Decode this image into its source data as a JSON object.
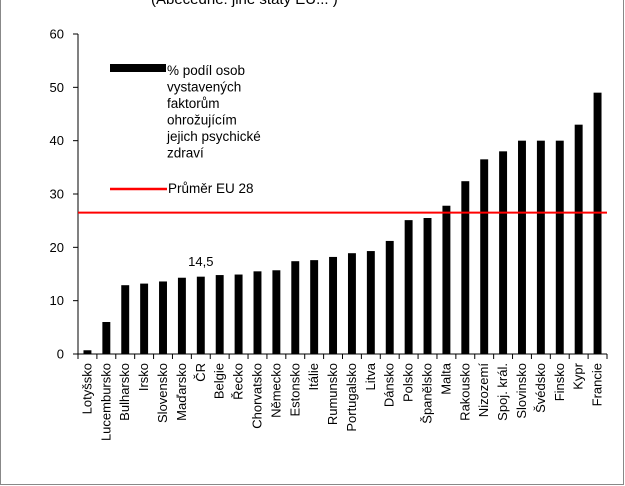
{
  "page": {
    "title_fragment": "(Abecedně: jiné státy EU... )"
  },
  "chart_data": {
    "type": "bar",
    "categories": [
      "Lotyšsko",
      "Lucembursko",
      "Bulharsko",
      "Irsko",
      "Slovensko",
      "Maďarsko",
      "ČR",
      "Belgie",
      "Řecko",
      "Chorvatsko",
      "Německo",
      "Estonsko",
      "Itálie",
      "Rumunsko",
      "Portugalsko",
      "Litva",
      "Dánsko",
      "Polsko",
      "Španělsko",
      "Malta",
      "Rakousko",
      "Nizozemí",
      "Spoj. král.",
      "Slovinsko",
      "Švédsko",
      "Finsko",
      "Kypr",
      "Francie"
    ],
    "series": [
      {
        "name": "% podíl osob vystavených faktorům ohrožujícím jejich psychické zdraví",
        "color": "#000000",
        "values": [
          0.7,
          6.0,
          12.9,
          13.2,
          13.6,
          14.3,
          14.5,
          14.8,
          14.9,
          15.5,
          15.7,
          17.4,
          17.6,
          18.2,
          18.9,
          19.3,
          21.2,
          25.1,
          25.5,
          27.8,
          32.4,
          36.5,
          38.0,
          40.0,
          40.0,
          40.0,
          43.0,
          49.0
        ]
      }
    ],
    "reference_line": {
      "name": "Průměr EU 28",
      "value": 26.5,
      "color": "#ff0000"
    },
    "annotation": {
      "text": "14,5",
      "category": "ČR"
    },
    "ylim": [
      0,
      60
    ],
    "yticks": [
      0,
      10,
      20,
      30,
      40,
      50,
      60
    ],
    "legend_position": "upper-left",
    "legend_entries": [
      {
        "label": "% podíl osob vystavených faktorům ohrožujícím jejich psychické zdraví",
        "lines": [
          "% podíl osob",
          "vystavených",
          "faktorům",
          "ohrožujícím",
          "jejich psychické",
          "zdraví"
        ],
        "color": "#000000"
      },
      {
        "label": "Průměr EU 28",
        "lines": [
          "Průměr EU 28"
        ],
        "color": "#ff0000"
      }
    ],
    "grid": false
  }
}
